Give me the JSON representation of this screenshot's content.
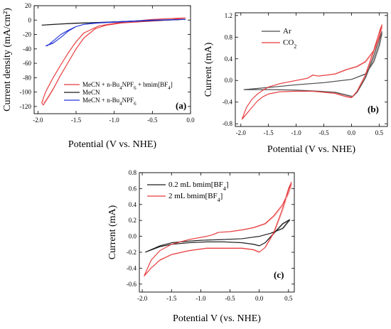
{
  "colors": {
    "red": "#e8393b",
    "black": "#1a1a1a",
    "blue": "#2233d4",
    "gray": "#4a4a4a",
    "pink": "#f07070"
  },
  "chart_data": [
    {
      "id": "a",
      "type": "line",
      "panel_label": "(a)",
      "xlabel": "Potential (V vs. NHE)",
      "ylabel": "Current density (mA/cm²)",
      "xlim": [
        -2.05,
        0.0
      ],
      "ylim": [
        -130,
        20
      ],
      "xticks": [
        -2.0,
        -1.5,
        -1.0,
        -0.5,
        0.0
      ],
      "xtick_labels": [
        "-2.0",
        "-1.5",
        "-1.0",
        "-0.5",
        "0.0"
      ],
      "yticks": [
        -120,
        -100,
        -80,
        -60,
        -40,
        -20,
        0,
        20
      ],
      "ytick_labels": [
        "-120",
        "-100",
        "-80",
        "-60",
        "-40",
        "-20",
        "0",
        "20"
      ],
      "legend_position": "bottom-right",
      "legend": [
        {
          "prefix": "MeCN + n-Bu",
          "sub1": "4",
          "mid": "NPF",
          "sub2": "6",
          "suffix": " + bmim[BF",
          "sub3": "4",
          "end": "]",
          "color": "red"
        },
        {
          "prefix": "MeCN",
          "sub1": "",
          "mid": "",
          "sub2": "",
          "suffix": "",
          "sub3": "",
          "end": "",
          "color": "black"
        },
        {
          "prefix": "MeCN + n-Bu",
          "sub1": "4",
          "mid": "NPF",
          "sub2": "6",
          "suffix": "",
          "sub3": "",
          "end": "",
          "color": "blue"
        }
      ],
      "series": [
        {
          "color": "red",
          "x": [
            -0.07,
            -0.3,
            -0.6,
            -0.9,
            -1.1,
            -1.25,
            -1.4,
            -1.5,
            -1.6,
            -1.7,
            -1.8,
            -1.88,
            -1.93,
            -1.95,
            -1.9,
            -1.8,
            -1.7,
            -1.6,
            -1.5,
            -1.4,
            -1.2,
            -0.9,
            -0.5,
            -0.07
          ],
          "y": [
            3,
            0,
            -2,
            -4,
            -7,
            -12,
            -25,
            -40,
            -58,
            -76,
            -96,
            -110,
            -118,
            -115,
            -100,
            -80,
            -62,
            -45,
            -30,
            -18,
            -8,
            -3,
            1,
            3
          ]
        },
        {
          "color": "black",
          "x": [
            -1.95,
            -1.7,
            -1.5,
            -1.3,
            -1.1,
            -0.9,
            -0.6,
            -0.3,
            -0.07,
            -0.3,
            -0.6,
            -0.9,
            -1.2,
            -1.5,
            -1.8,
            -1.95
          ],
          "y": [
            -7,
            -5.5,
            -4.5,
            -3.7,
            -3,
            -2.3,
            -1.2,
            0,
            1,
            0.3,
            -0.8,
            -2,
            -3.2,
            -4.3,
            -6,
            -7
          ]
        },
        {
          "color": "blue",
          "x": [
            -1.9,
            -1.8,
            -1.7,
            -1.6,
            -1.5,
            -1.4,
            -1.3,
            -1.1,
            -0.9,
            -0.5,
            -0.07,
            -0.5,
            -0.9,
            -1.2,
            -1.4,
            -1.5,
            -1.6,
            -1.7,
            -1.8,
            -1.88
          ],
          "y": [
            -36,
            -32,
            -24,
            -15,
            -9,
            -6,
            -4.5,
            -3,
            -2,
            0,
            1,
            -0.5,
            -2.5,
            -4,
            -6,
            -9,
            -14,
            -20,
            -29,
            -36
          ]
        }
      ]
    },
    {
      "id": "b",
      "type": "line",
      "panel_label": "(b)",
      "xlabel": "Potential (V vs. NHE)",
      "ylabel": "Current (mA)",
      "xlim": [
        -2.1,
        0.65
      ],
      "ylim": [
        -0.85,
        1.25
      ],
      "xticks": [
        -2.0,
        -1.5,
        -1.0,
        -0.5,
        0.0,
        0.5
      ],
      "xtick_labels": [
        "-2.0",
        "-1.5",
        "-1.0",
        "-0.5",
        "0.0",
        "0.5"
      ],
      "yticks": [
        -0.8,
        -0.4,
        0.0,
        0.4,
        0.8,
        1.2
      ],
      "ytick_labels": [
        "-0.8",
        "-0.4",
        "0.0",
        "0.4",
        "0.8",
        "1.2"
      ],
      "legend_position": "top-left",
      "legend": [
        {
          "prefix": "Ar",
          "sub1": "",
          "suffix": "",
          "color": "gray"
        },
        {
          "prefix": "CO",
          "sub1": "2",
          "suffix": "",
          "color": "red"
        }
      ],
      "series": [
        {
          "color": "gray",
          "x": [
            -1.95,
            -1.5,
            -1.0,
            -0.5,
            0.0,
            0.25,
            0.4,
            0.5,
            0.55,
            0.52,
            0.4,
            0.25,
            0.1,
            0.02,
            -0.1,
            -0.3,
            -0.6,
            -1.0,
            -1.4,
            -1.7,
            -1.95
          ],
          "y": [
            -0.17,
            -0.13,
            -0.08,
            -0.04,
            0.02,
            0.12,
            0.35,
            0.65,
            0.9,
            0.82,
            0.45,
            0.05,
            -0.22,
            -0.3,
            -0.27,
            -0.22,
            -0.2,
            -0.18,
            -0.17,
            -0.17,
            -0.17
          ]
        },
        {
          "color": "red",
          "x": [
            -1.98,
            -1.9,
            -1.8,
            -1.7,
            -1.6,
            -1.5,
            -1.3,
            -1.0,
            -0.8,
            -0.7,
            -0.6,
            -0.3,
            -0.1,
            0.1,
            0.25,
            0.4,
            0.5,
            0.55,
            0.52,
            0.4,
            0.25,
            0.1,
            0.0,
            -0.1,
            -0.3,
            -0.5,
            -0.7,
            -1.0,
            -1.3,
            -1.5,
            -1.6,
            -1.7,
            -1.8,
            -1.9,
            -1.98
          ],
          "y": [
            -0.72,
            -0.5,
            -0.35,
            -0.25,
            -0.18,
            -0.12,
            -0.06,
            0.0,
            0.04,
            0.1,
            0.08,
            0.12,
            0.2,
            0.26,
            0.35,
            0.55,
            0.8,
            1.03,
            0.95,
            0.55,
            0.1,
            -0.2,
            -0.32,
            -0.3,
            -0.24,
            -0.22,
            -0.2,
            -0.2,
            -0.21,
            -0.25,
            -0.3,
            -0.38,
            -0.5,
            -0.62,
            -0.72
          ]
        }
      ]
    },
    {
      "id": "c",
      "type": "line",
      "panel_label": "(c)",
      "xlabel": "Potential V (vs. NHE)",
      "ylabel": "Current (mA)",
      "xlim": [
        -2.05,
        0.6
      ],
      "ylim": [
        -0.7,
        0.8
      ],
      "xticks": [
        -2.0,
        -1.5,
        -1.0,
        -0.5,
        0.0,
        0.5
      ],
      "xtick_labels": [
        "-2.0",
        "-1.5",
        "-1.0",
        "-0.5",
        "0.0",
        "0.5"
      ],
      "yticks": [
        -0.6,
        -0.4,
        -0.2,
        0.0,
        0.2,
        0.4,
        0.6,
        0.8
      ],
      "ytick_labels": [
        "-0.6",
        "-0.4",
        "-0.2",
        "0.0",
        "0.2",
        "0.4",
        "0.6",
        "0.8"
      ],
      "legend_position": "top-left",
      "legend": [
        {
          "prefix": "0.2 mL bmim[BF",
          "sub1": "4",
          "suffix": "]",
          "color": "black"
        },
        {
          "prefix": "2 mL bmim[BF",
          "sub1": "4",
          "suffix": "]",
          "color": "red"
        }
      ],
      "series": [
        {
          "color": "black",
          "x": [
            -1.95,
            -1.7,
            -1.5,
            -1.2,
            -1.0,
            -0.6,
            -0.3,
            0.0,
            0.2,
            0.4,
            0.52,
            0.4,
            0.25,
            0.1,
            0.0,
            -0.1,
            -0.3,
            -0.6,
            -0.9,
            -1.2,
            -1.5,
            -1.7,
            -1.95
          ],
          "y": [
            -0.2,
            -0.12,
            -0.08,
            -0.06,
            -0.05,
            -0.04,
            -0.03,
            0.0,
            0.04,
            0.1,
            0.21,
            0.16,
            0.04,
            -0.08,
            -0.12,
            -0.1,
            -0.08,
            -0.07,
            -0.07,
            -0.08,
            -0.1,
            -0.13,
            -0.2
          ]
        },
        {
          "color": "red",
          "x": [
            -1.97,
            -1.85,
            -1.7,
            -1.5,
            -1.2,
            -0.9,
            -0.8,
            -0.7,
            -0.5,
            -0.3,
            -0.1,
            0.1,
            0.25,
            0.4,
            0.5,
            0.55,
            0.5,
            0.4,
            0.25,
            0.1,
            0.0,
            -0.1,
            -0.3,
            -0.5,
            -0.7,
            -0.9,
            -1.2,
            -1.5,
            -1.7,
            -1.85,
            -1.97
          ],
          "y": [
            -0.5,
            -0.3,
            -0.18,
            -0.1,
            -0.04,
            0.0,
            0.02,
            0.05,
            0.06,
            0.08,
            0.11,
            0.16,
            0.26,
            0.4,
            0.56,
            0.68,
            0.6,
            0.35,
            0.05,
            -0.14,
            -0.2,
            -0.17,
            -0.15,
            -0.15,
            -0.15,
            -0.15,
            -0.18,
            -0.23,
            -0.3,
            -0.4,
            -0.5
          ]
        }
      ]
    }
  ]
}
